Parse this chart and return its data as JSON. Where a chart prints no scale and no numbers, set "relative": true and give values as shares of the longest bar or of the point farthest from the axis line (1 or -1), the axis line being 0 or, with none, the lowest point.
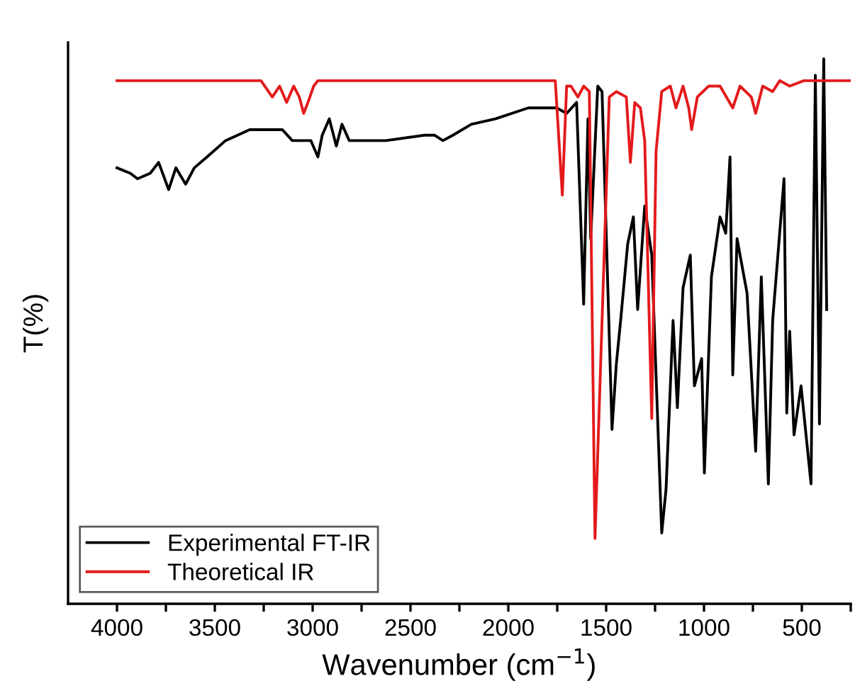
{
  "chart_data": {
    "type": "line",
    "relative": true,
    "xlabel": "Wavenumber (cm$^{−1}$)",
    "ylabel": "T(%)",
    "xlim": [
      4250,
      250
    ],
    "xticks": [
      4000,
      {
        "value": 3750,
        "label": null
      },
      3500,
      {
        "value": 3250,
        "label": null
      },
      3000,
      {
        "value": 2750,
        "label": null
      },
      2500,
      {
        "value": 2250,
        "label": null
      },
      2000,
      {
        "value": 1750,
        "label": null
      },
      1500,
      {
        "value": 1250,
        "label": null
      },
      1000,
      {
        "value": 750,
        "label": null
      },
      500,
      {
        "value": 250,
        "label": null
      }
    ],
    "legend": "bottom left",
    "grid": false,
    "tick_labels": "x",
    "series": [
      {
        "name": "Experimental FT-IR",
        "color": "#000000",
        "x": [
          4000,
          3932,
          3895,
          3830,
          3787,
          3736,
          3699,
          3649,
          3605,
          3540,
          3445,
          3322,
          3155,
          3104,
          3009,
          2973,
          2951,
          2915,
          2879,
          2850,
          2813,
          2625,
          2428,
          2378,
          2334,
          2283,
          2189,
          2065,
          1898,
          1848,
          1753,
          1702,
          1651,
          1615,
          1593,
          1579,
          1543,
          1521,
          1470,
          1448,
          1426,
          1390,
          1361,
          1339,
          1303,
          1267,
          1216,
          1194,
          1158,
          1136,
          1107,
          1070,
          1049,
          1012,
          998,
          962,
          918,
          889,
          867,
          853,
          831,
          780,
          736,
          707,
          671,
          649,
          591,
          577,
          562,
          540,
          504,
          453,
          431,
          410,
          388,
          373
        ],
        "values": [
          0.8,
          0.79,
          0.78,
          0.79,
          0.81,
          0.76,
          0.8,
          0.77,
          0.8,
          0.82,
          0.85,
          0.87,
          0.87,
          0.85,
          0.85,
          0.82,
          0.86,
          0.89,
          0.84,
          0.88,
          0.85,
          0.85,
          0.86,
          0.86,
          0.85,
          0.86,
          0.88,
          0.89,
          0.91,
          0.91,
          0.91,
          0.9,
          0.92,
          0.55,
          0.89,
          0.67,
          0.95,
          0.94,
          0.32,
          0.44,
          0.52,
          0.66,
          0.71,
          0.54,
          0.73,
          0.64,
          0.13,
          0.21,
          0.52,
          0.36,
          0.58,
          0.64,
          0.4,
          0.45,
          0.24,
          0.6,
          0.71,
          0.68,
          0.82,
          0.42,
          0.67,
          0.57,
          0.28,
          0.6,
          0.22,
          0.52,
          0.78,
          0.35,
          0.5,
          0.31,
          0.4,
          0.22,
          0.97,
          0.33,
          1.0,
          0.54
        ]
      },
      {
        "name": "Theoretical IR",
        "color": "#e31a1c",
        "x": [
          4000,
          3264,
          3206,
          3169,
          3133,
          3097,
          3068,
          3046,
          3024,
          2995,
          2973,
          1760,
          1724,
          1702,
          1680,
          1644,
          1615,
          1586,
          1557,
          1484,
          1448,
          1397,
          1376,
          1354,
          1325,
          1303,
          1267,
          1245,
          1216,
          1172,
          1143,
          1107,
          1078,
          1063,
          1034,
          976,
          918,
          853,
          816,
          758,
          736,
          700,
          649,
          613,
          562,
          490,
          395,
          250
        ],
        "values": [
          0.96,
          0.96,
          0.93,
          0.95,
          0.92,
          0.95,
          0.93,
          0.9,
          0.92,
          0.95,
          0.96,
          0.96,
          0.75,
          0.95,
          0.95,
          0.93,
          0.95,
          0.94,
          0.12,
          0.93,
          0.94,
          0.93,
          0.81,
          0.92,
          0.91,
          0.85,
          0.34,
          0.83,
          0.94,
          0.95,
          0.91,
          0.95,
          0.91,
          0.87,
          0.93,
          0.95,
          0.95,
          0.91,
          0.95,
          0.93,
          0.9,
          0.95,
          0.94,
          0.96,
          0.95,
          0.96,
          0.96,
          0.96
        ]
      }
    ]
  }
}
